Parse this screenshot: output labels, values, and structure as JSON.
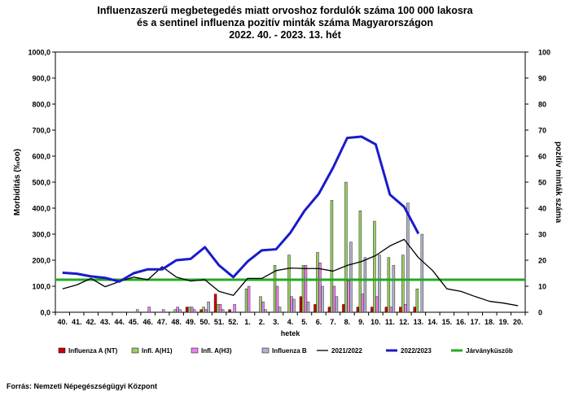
{
  "title_lines": [
    "Influenzaszerű megbetegedés miatt orvoshoz fordulók száma 100 000 lakosra",
    "és a sentinel influenza pozitív minták száma Magyarországon",
    "2022. 40. - 2023. 13. hét"
  ],
  "source": "Forrás: Nemzeti Népegészségügyi Központ",
  "chart_data": {
    "type": "bar",
    "xlabel": "hetek",
    "ylabel": "Morbiditás (‰oo)",
    "y2label": "pozitív minták száma",
    "ylim": [
      0,
      1000
    ],
    "y2lim": [
      0,
      100
    ],
    "yticks": [
      "0,0",
      "100,0",
      "200,0",
      "300,0",
      "400,0",
      "500,0",
      "600,0",
      "700,0",
      "800,0",
      "900,0",
      "1000,0"
    ],
    "y2ticks": [
      "0",
      "10",
      "20",
      "30",
      "40",
      "50",
      "60",
      "70",
      "80",
      "90",
      "100"
    ],
    "categories": [
      "40.",
      "41.",
      "42.",
      "43.",
      "44.",
      "45.",
      "46.",
      "47.",
      "48.",
      "49.",
      "50.",
      "51.",
      "52.",
      "1.",
      "2.",
      "3.",
      "4.",
      "5.",
      "6.",
      "7.",
      "8.",
      "9.",
      "10.",
      "11.",
      "12.",
      "13.",
      "14.",
      "15.",
      "16.",
      "17.",
      "18.",
      "19.",
      "20."
    ],
    "bar_series": [
      {
        "name": "Influenza A (NT)",
        "color": "#cc0000",
        "values": [
          0,
          0,
          0,
          0,
          0,
          0,
          0,
          0,
          0,
          2,
          1,
          7,
          1,
          0,
          0,
          0,
          0,
          6,
          3,
          2,
          3,
          2,
          2,
          2,
          2,
          2,
          null,
          null,
          null,
          null,
          null,
          null,
          null
        ]
      },
      {
        "name": "Infl. A(H1)",
        "color": "#99cc66",
        "values": [
          0,
          0,
          0,
          0,
          0,
          0,
          0,
          0,
          1,
          2,
          2,
          3,
          0,
          9,
          6,
          18,
          22,
          18,
          23,
          43,
          50,
          39,
          35,
          21,
          22,
          9,
          null,
          null,
          null,
          null,
          null,
          null,
          null
        ]
      },
      {
        "name": "Infl. A(H3)",
        "color": "#ee82ee",
        "values": [
          0,
          0,
          0,
          0,
          0,
          0,
          2,
          1,
          2,
          2,
          1,
          3,
          3,
          10,
          4,
          10,
          6,
          18,
          19,
          10,
          12,
          7,
          6,
          2,
          3,
          0,
          null,
          null,
          null,
          null,
          null,
          null,
          null
        ]
      },
      {
        "name": "Influenza B",
        "color": "#b3b3cc",
        "values": [
          0,
          0,
          0,
          0,
          0,
          1,
          0,
          0,
          1,
          1,
          4,
          1,
          0,
          0,
          1,
          2,
          5,
          4,
          10,
          6,
          27,
          21,
          22,
          18,
          42,
          30,
          null,
          null,
          null,
          null,
          null,
          null,
          null
        ]
      }
    ],
    "line_series": [
      {
        "name": "2021/2022",
        "color": "#000000",
        "values": [
          90,
          105,
          130,
          98,
          118,
          135,
          125,
          175,
          135,
          120,
          125,
          80,
          65,
          130,
          130,
          160,
          170,
          168,
          168,
          158,
          180,
          195,
          218,
          255,
          280,
          210,
          160,
          90,
          80,
          60,
          42,
          35,
          25
        ]
      },
      {
        "name": "2022/2023",
        "color": "#1a1acc",
        "values": [
          152,
          148,
          138,
          132,
          118,
          150,
          165,
          165,
          200,
          205,
          250,
          180,
          135,
          195,
          238,
          242,
          305,
          390,
          455,
          555,
          670,
          675,
          645,
          452,
          405,
          302,
          null,
          null,
          null,
          null,
          null,
          null,
          null
        ]
      }
    ],
    "threshold": {
      "name": "Járványküszöb",
      "color": "#22aa22",
      "value": 125
    },
    "legend_position": "bottom"
  }
}
